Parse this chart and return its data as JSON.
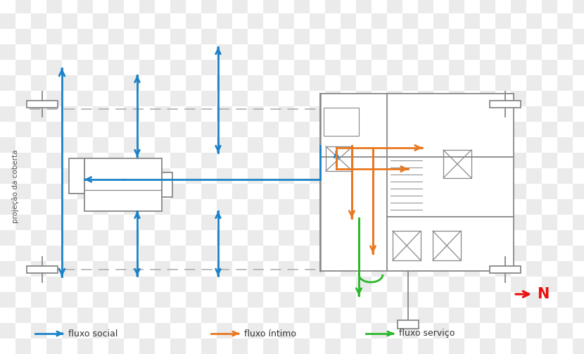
{
  "background_color": "#ffffff",
  "checker_color": "#c8c8c8",
  "checker_alpha": 0.35,
  "blue": "#1a82c8",
  "orange": "#e87820",
  "green": "#28b828",
  "red": "#e81010",
  "wall_color": "#888888",
  "wall_lw": 1.3,
  "legend": [
    {
      "label": "fluxo social",
      "color": "#1a82c8"
    },
    {
      "label": "fluxo íntimo",
      "color": "#e87820"
    },
    {
      "label": "fluxo serviço",
      "color": "#28b828"
    }
  ],
  "north_label": "N",
  "proj_label": "projeção da coberta",
  "figsize": [
    8.3,
    5.03
  ]
}
